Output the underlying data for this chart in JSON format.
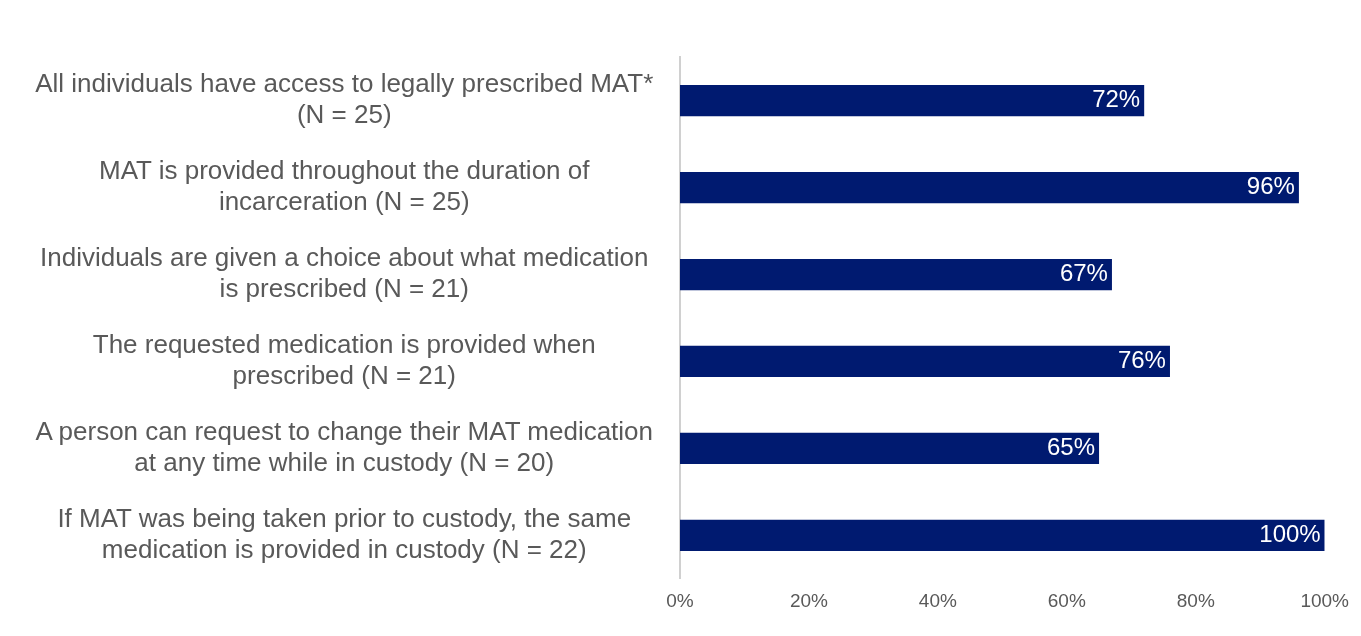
{
  "chart_data": {
    "type": "bar",
    "orientation": "horizontal",
    "categories": [
      "All individuals have access to legally prescribed MAT* (N = 25)",
      "MAT is provided throughout the duration of incarceration (N = 25)",
      "Individuals are given a choice about what medication is prescribed (N = 21)",
      "The requested medication is provided when prescribed (N = 21)",
      "A person can request to change their MAT medication at any time while in custody (N = 20)",
      "If MAT was being taken prior to custody, the same medication is provided in custody (N = 22)"
    ],
    "values": [
      72,
      96,
      67,
      76,
      65,
      100
    ],
    "value_labels": [
      "72%",
      "96%",
      "67%",
      "76%",
      "65%",
      "100%"
    ],
    "color": "#001a70",
    "xlim": [
      0,
      100
    ],
    "xticks": [
      {
        "value": 0,
        "label": "0%"
      },
      {
        "value": 20,
        "label": "20%"
      },
      {
        "value": 40,
        "label": "40%"
      },
      {
        "value": 60,
        "label": "60%"
      },
      {
        "value": 80,
        "label": "80%"
      },
      {
        "value": 100,
        "label": "100%"
      }
    ],
    "grid": false,
    "legend": false
  }
}
